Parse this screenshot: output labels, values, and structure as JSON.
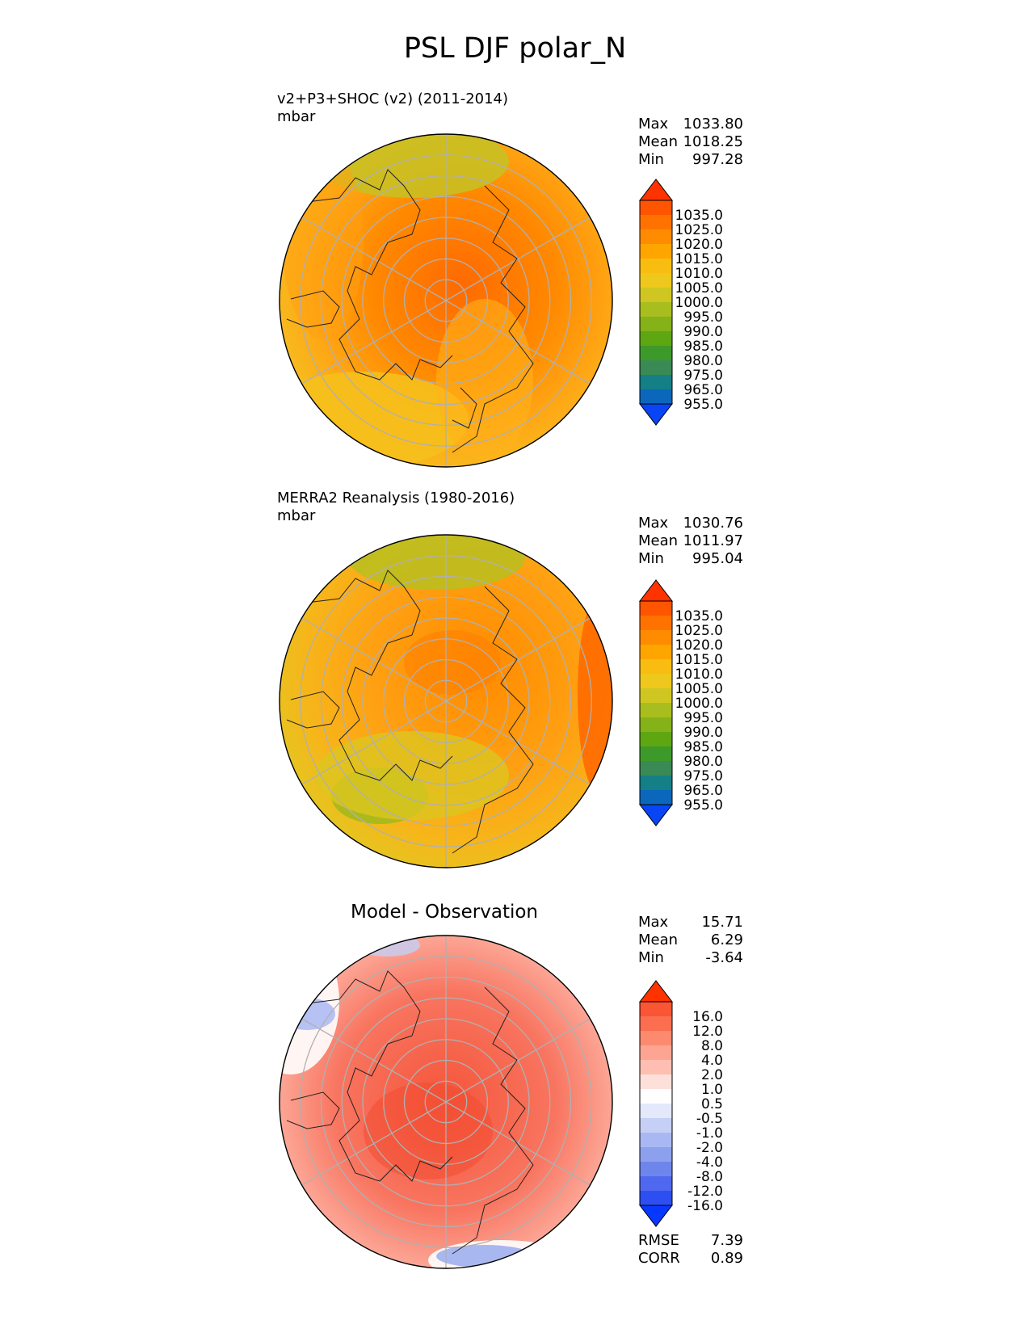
{
  "title": "PSL DJF polar_N",
  "panels": [
    {
      "id": "test",
      "name": "v2+P3+SHOC (v2) (2011-2014)",
      "units": "mbar",
      "stats": [
        {
          "label": "Max",
          "value": "1033.80"
        },
        {
          "label": "Mean",
          "value": "1018.25"
        },
        {
          "label": "Min",
          "value": "997.28"
        }
      ],
      "colorbar": {
        "labels": [
          "1035.0",
          "1025.0",
          "1020.0",
          "1015.0",
          "1010.0",
          "1005.0",
          "1000.0",
          "995.0",
          "990.0",
          "985.0",
          "980.0",
          "975.0",
          "965.0",
          "955.0"
        ],
        "colors": [
          "#ff3300",
          "#ff5500",
          "#ff7200",
          "#ff8c00",
          "#ffa500",
          "#f8bd10",
          "#eec81c",
          "#cfc622",
          "#a8be1e",
          "#84b218",
          "#5ea713",
          "#3d9a2a",
          "#3a8a55",
          "#147f86",
          "#0a67bb",
          "#0845f5"
        ]
      }
    },
    {
      "id": "reference",
      "name": "MERRA2 Reanalysis (1980-2016)",
      "units": "mbar",
      "stats": [
        {
          "label": "Max",
          "value": "1030.76"
        },
        {
          "label": "Mean",
          "value": "1011.97"
        },
        {
          "label": "Min",
          "value": "995.04"
        }
      ],
      "colorbar": {
        "labels": [
          "1035.0",
          "1025.0",
          "1020.0",
          "1015.0",
          "1010.0",
          "1005.0",
          "1000.0",
          "995.0",
          "990.0",
          "985.0",
          "980.0",
          "975.0",
          "965.0",
          "955.0"
        ],
        "colors": [
          "#ff3300",
          "#ff5500",
          "#ff7200",
          "#ff8c00",
          "#ffa500",
          "#f8bd10",
          "#eec81c",
          "#cfc622",
          "#a8be1e",
          "#84b218",
          "#5ea713",
          "#3d9a2a",
          "#3a8a55",
          "#147f86",
          "#0a67bb",
          "#0845f5"
        ]
      }
    },
    {
      "id": "diff",
      "name": "Model - Observation",
      "units": "",
      "stats": [
        {
          "label": "Max",
          "value": "15.71"
        },
        {
          "label": "Mean",
          "value": "6.29"
        },
        {
          "label": "Min",
          "value": "-3.64"
        }
      ],
      "metrics": [
        {
          "label": "RMSE",
          "value": "7.39"
        },
        {
          "label": "CORR",
          "value": "0.89"
        }
      ],
      "colorbar": {
        "labels": [
          "16.0",
          "12.0",
          "8.0",
          "4.0",
          "2.0",
          "1.0",
          "0.5",
          "-0.5",
          "-1.0",
          "-2.0",
          "-4.0",
          "-8.0",
          "-12.0",
          "-16.0"
        ],
        "colors": [
          "#ff3300",
          "#fa5535",
          "#fb6e50",
          "#fc8a6e",
          "#fda592",
          "#febfb2",
          "#fee0da",
          "#ffffff",
          "#e3e8fb",
          "#c6d0f6",
          "#a9b8f2",
          "#8ca0ee",
          "#6e86ec",
          "#5068ef",
          "#2d4ff1",
          "#0838ff"
        ]
      }
    }
  ],
  "chart_data": [
    {
      "type": "heatmap",
      "projection": "north polar stereographic",
      "title": "v2+P3+SHOC (v2) (2011-2014)",
      "units": "mbar",
      "levels": [
        955,
        965,
        975,
        980,
        985,
        990,
        995,
        1000,
        1005,
        1010,
        1015,
        1020,
        1025,
        1035
      ],
      "max": 1033.8,
      "mean": 1018.25,
      "min": 997.28
    },
    {
      "type": "heatmap",
      "projection": "north polar stereographic",
      "title": "MERRA2 Reanalysis (1980-2016)",
      "units": "mbar",
      "levels": [
        955,
        965,
        975,
        980,
        985,
        990,
        995,
        1000,
        1005,
        1010,
        1015,
        1020,
        1025,
        1035
      ],
      "max": 1030.76,
      "mean": 1011.97,
      "min": 995.04
    },
    {
      "type": "heatmap",
      "projection": "north polar stereographic",
      "title": "Model - Observation",
      "levels": [
        -16,
        -12,
        -8,
        -4,
        -2,
        -1,
        -0.5,
        0.5,
        1,
        2,
        4,
        8,
        12,
        16
      ],
      "max": 15.71,
      "mean": 6.29,
      "min": -3.64,
      "rmse": 7.39,
      "corr": 0.89
    }
  ]
}
